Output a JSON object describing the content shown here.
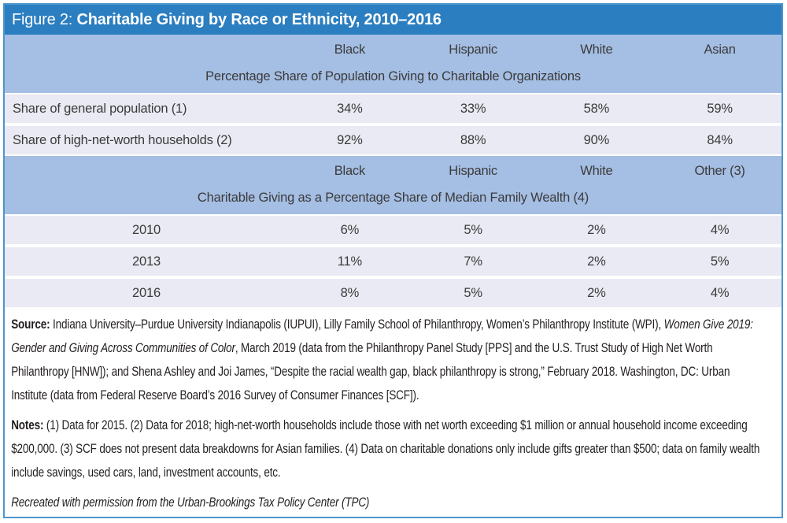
{
  "figure": {
    "label": "Figure 2:",
    "title": "Charitable Giving by Race or Ethnicity, 2010–2016"
  },
  "table": {
    "section1": {
      "columns": [
        "Black",
        "Hispanic",
        "White",
        "Asian"
      ],
      "caption": "Percentage Share of Population Giving to Charitable Organizations",
      "rows": [
        {
          "label": "Share of general population (1)",
          "values": [
            "34%",
            "33%",
            "58%",
            "59%"
          ]
        },
        {
          "label": "Share of high-net-worth households (2)",
          "values": [
            "92%",
            "88%",
            "90%",
            "84%"
          ]
        }
      ]
    },
    "section2": {
      "columns": [
        "Black",
        "Hispanic",
        "White",
        "Other (3)"
      ],
      "caption": "Charitable Giving as a Percentage Share of Median Family Wealth (4)",
      "rows": [
        {
          "label": "2010",
          "values": [
            "6%",
            "5%",
            "2%",
            "4%"
          ]
        },
        {
          "label": "2013",
          "values": [
            "11%",
            "7%",
            "2%",
            "5%"
          ]
        },
        {
          "label": "2016",
          "values": [
            "8%",
            "5%",
            "2%",
            "4%"
          ]
        }
      ]
    }
  },
  "source": {
    "label": "Source:",
    "text1": " Indiana University–Purdue University Indianapolis (IUPUI), Lilly Family School of Philanthropy, Women’s Philanthropy Institute (WPI), ",
    "italic_title": "Women Give 2019: Gender and Giving Across Communities of Color",
    "text2": ", March 2019 (data from the Philanthropy Panel Study [PPS] and the U.S. Trust Study of High Net Worth Philanthropy [HNW]); and Shena Ashley and Joi James, “Despite the racial wealth gap, black philanthropy is strong,” February 2018. Washington, DC: Urban Institute (data from Federal Reserve Board’s 2016 Survey of Consumer Finances [SCF])."
  },
  "notes": {
    "label": "Notes:",
    "text": " (1) Data for 2015. (2) Data for 2018; high-net-worth households include those with net worth exceeding $1 million or annual household income exceeding $200,000. (3) SCF does not present data breakdowns for Asian families. (4) Data on charitable donations only include gifts greater than $500; data on family wealth include savings, used cars, land, investment accounts, etc."
  },
  "footer": {
    "text": "Recreated with permission from the Urban-Brookings Tax Policy Center (TPC)"
  },
  "colors": {
    "title_bar": "#2B7EC0",
    "border": "#4E96CC",
    "header_band": "#A5BEE3",
    "row_background": "#E9EAF3",
    "table_text": "#3B3B3B",
    "notes_text": "#231F20",
    "title_text": "#FFFFFF"
  },
  "chart_data": [
    {
      "type": "table",
      "title": "Percentage Share of Population Giving to Charitable Organizations",
      "categories": [
        "Black",
        "Hispanic",
        "White",
        "Asian"
      ],
      "series": [
        {
          "name": "Share of general population (1)",
          "values": [
            34,
            33,
            58,
            59
          ]
        },
        {
          "name": "Share of high-net-worth households (2)",
          "values": [
            92,
            88,
            90,
            84
          ]
        }
      ],
      "unit": "%"
    },
    {
      "type": "table",
      "title": "Charitable Giving as a Percentage Share of Median Family Wealth (4)",
      "categories": [
        "Black",
        "Hispanic",
        "White",
        "Other (3)"
      ],
      "series": [
        {
          "name": "2010",
          "values": [
            6,
            5,
            2,
            4
          ]
        },
        {
          "name": "2013",
          "values": [
            11,
            7,
            2,
            5
          ]
        },
        {
          "name": "2016",
          "values": [
            8,
            5,
            2,
            4
          ]
        }
      ],
      "unit": "%"
    }
  ]
}
